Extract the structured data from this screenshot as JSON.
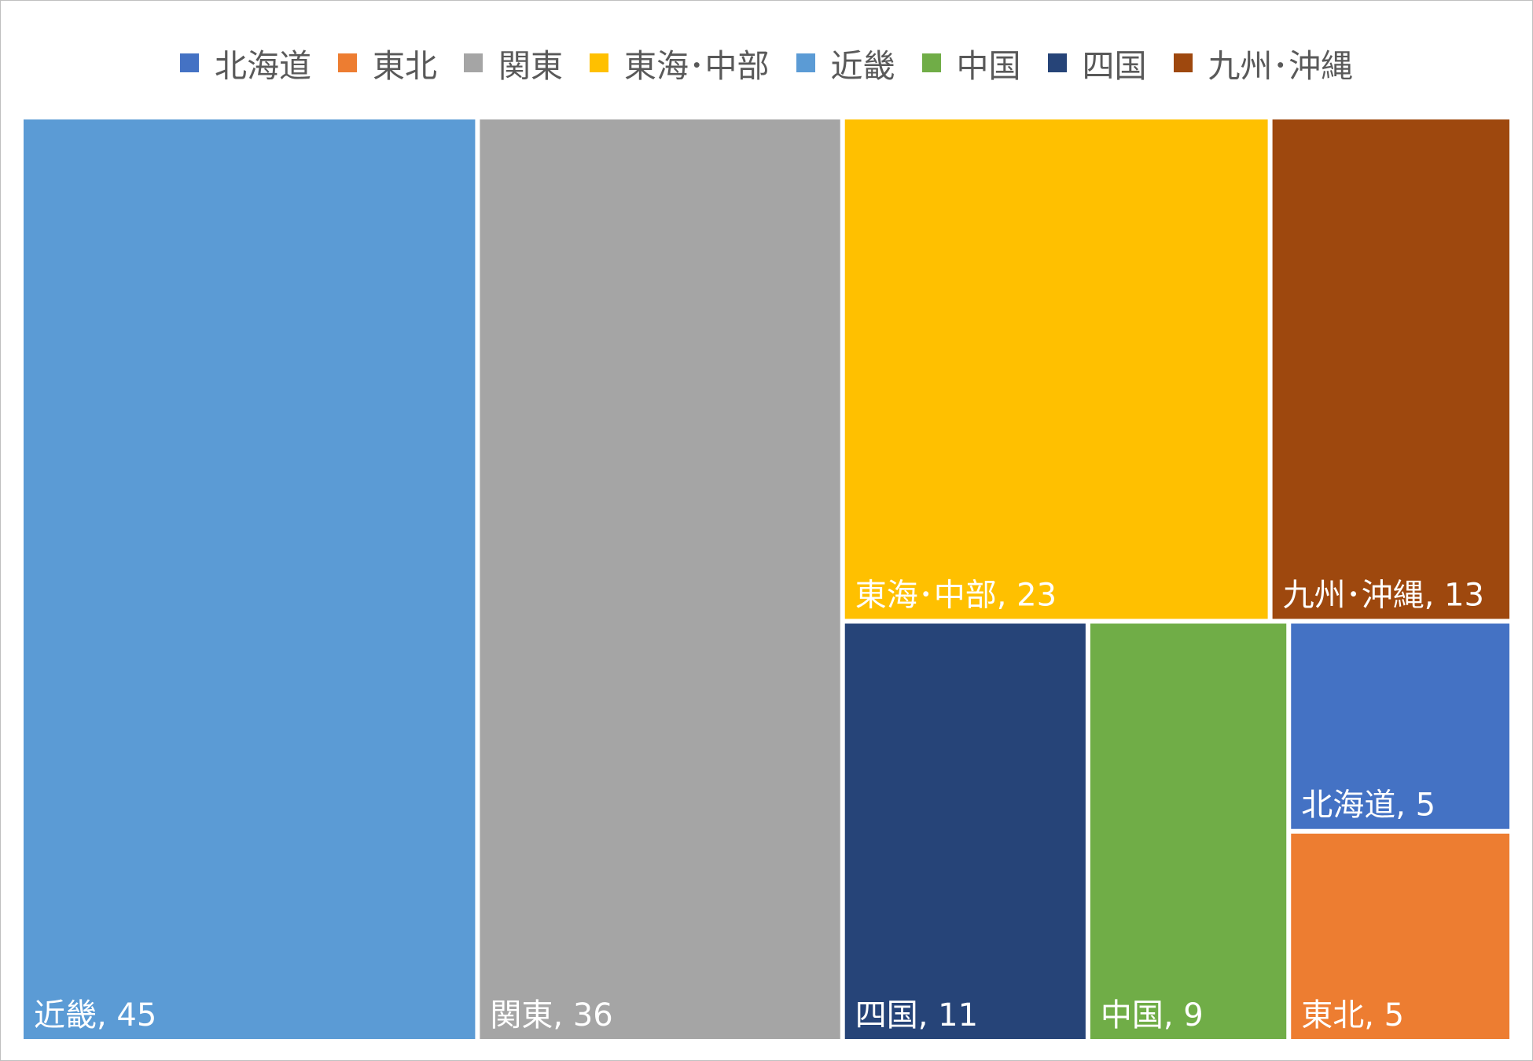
{
  "chart_data": {
    "type": "treemap",
    "legend_position": "top",
    "legend": [
      {
        "label": "北海道",
        "color": "#4472C4"
      },
      {
        "label": "東北",
        "color": "#ED7D31"
      },
      {
        "label": "関東",
        "color": "#A5A5A5"
      },
      {
        "label": "東海･中部",
        "color": "#FFC000"
      },
      {
        "label": "近畿",
        "color": "#5B9BD5"
      },
      {
        "label": "中国",
        "color": "#70AD47"
      },
      {
        "label": "四国",
        "color": "#264478"
      },
      {
        "label": "九州･沖縄",
        "color": "#9E480E"
      }
    ],
    "items": [
      {
        "name": "近畿",
        "value": 45,
        "color": "#5B9BD5",
        "label": "近畿, 45"
      },
      {
        "name": "関東",
        "value": 36,
        "color": "#A5A5A5",
        "label": "関東, 36"
      },
      {
        "name": "東海･中部",
        "value": 23,
        "color": "#FFC000",
        "label": "東海･中部, 23"
      },
      {
        "name": "九州･沖縄",
        "value": 13,
        "color": "#9E480E",
        "label": "九州･沖縄, 13"
      },
      {
        "name": "四国",
        "value": 11,
        "color": "#264478",
        "label": "四国, 11"
      },
      {
        "name": "中国",
        "value": 9,
        "color": "#70AD47",
        "label": "中国, 9"
      },
      {
        "name": "北海道",
        "value": 5,
        "color": "#4472C4",
        "label": "北海道, 5"
      },
      {
        "name": "東北",
        "value": 5,
        "color": "#ED7D31",
        "label": "東北, 5"
      }
    ]
  }
}
